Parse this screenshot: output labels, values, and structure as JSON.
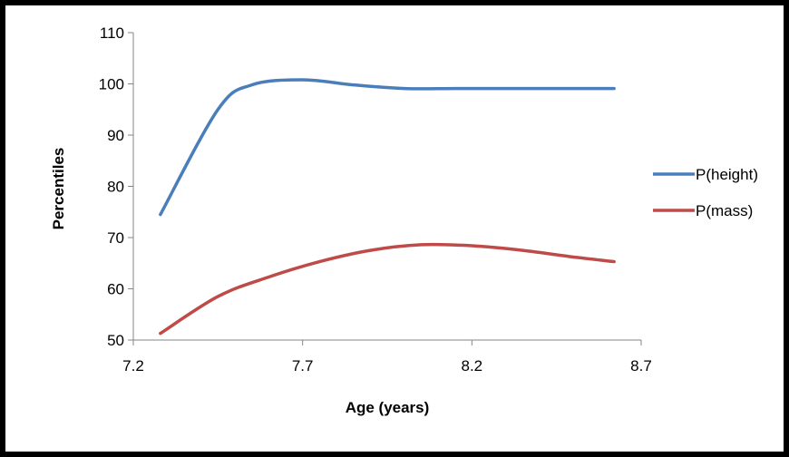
{
  "chart_data": {
    "type": "line",
    "title": "",
    "xlabel": "Age (years)",
    "ylabel": "Percentiles",
    "xlim": [
      7.2,
      8.7
    ],
    "ylim": [
      50,
      110
    ],
    "xticks": [
      "7.2",
      "7.7",
      "8.2",
      "8.7"
    ],
    "yticks": [
      "50",
      "60",
      "70",
      "80",
      "90",
      "100",
      "110"
    ],
    "grid": false,
    "legend_position": "right",
    "series": [
      {
        "name": "P(height)",
        "color": "#4a7ebb",
        "x": [
          7.28,
          7.45,
          7.55,
          7.7,
          7.85,
          8.0,
          8.15,
          8.3,
          8.45,
          8.62
        ],
        "y": [
          74.5,
          95.0,
          99.8,
          100.8,
          99.8,
          99.1,
          99.1,
          99.1,
          99.1,
          99.1
        ]
      },
      {
        "name": "P(mass)",
        "color": "#be4b48",
        "x": [
          7.28,
          7.45,
          7.6,
          7.75,
          7.9,
          8.05,
          8.2,
          8.35,
          8.5,
          8.62
        ],
        "y": [
          51.3,
          58.5,
          62.3,
          65.3,
          67.5,
          68.6,
          68.4,
          67.5,
          66.2,
          65.3
        ]
      }
    ]
  }
}
